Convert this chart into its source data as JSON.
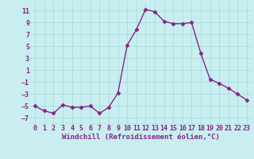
{
  "x": [
    0,
    1,
    2,
    3,
    4,
    5,
    6,
    7,
    8,
    9,
    10,
    11,
    12,
    13,
    14,
    15,
    16,
    17,
    18,
    19,
    20,
    21,
    22,
    23
  ],
  "y": [
    -5,
    -5.8,
    -6.2,
    -4.8,
    -5.2,
    -5.2,
    -5.0,
    -6.2,
    -5.2,
    -2.8,
    5.2,
    7.8,
    11.2,
    10.8,
    9.2,
    8.8,
    8.8,
    9.0,
    3.8,
    -0.5,
    -1.2,
    -2.0,
    -3.0,
    -4.0
  ],
  "line_color": "#882288",
  "marker": "D",
  "marker_size": 2.5,
  "bg_color": "#c8eef0",
  "grid_color": "#aadddd",
  "xlabel": "Windchill (Refroidissement éolien,°C)",
  "xlim": [
    -0.5,
    23.5
  ],
  "ylim": [
    -8,
    12.5
  ],
  "yticks": [
    -7,
    -5,
    -3,
    -1,
    1,
    3,
    5,
    7,
    9,
    11
  ],
  "xticks": [
    0,
    1,
    2,
    3,
    4,
    5,
    6,
    7,
    8,
    9,
    10,
    11,
    12,
    13,
    14,
    15,
    16,
    17,
    18,
    19,
    20,
    21,
    22,
    23
  ],
  "xlabel_fontsize": 6.5,
  "tick_fontsize": 6.0,
  "line_width": 1.0
}
